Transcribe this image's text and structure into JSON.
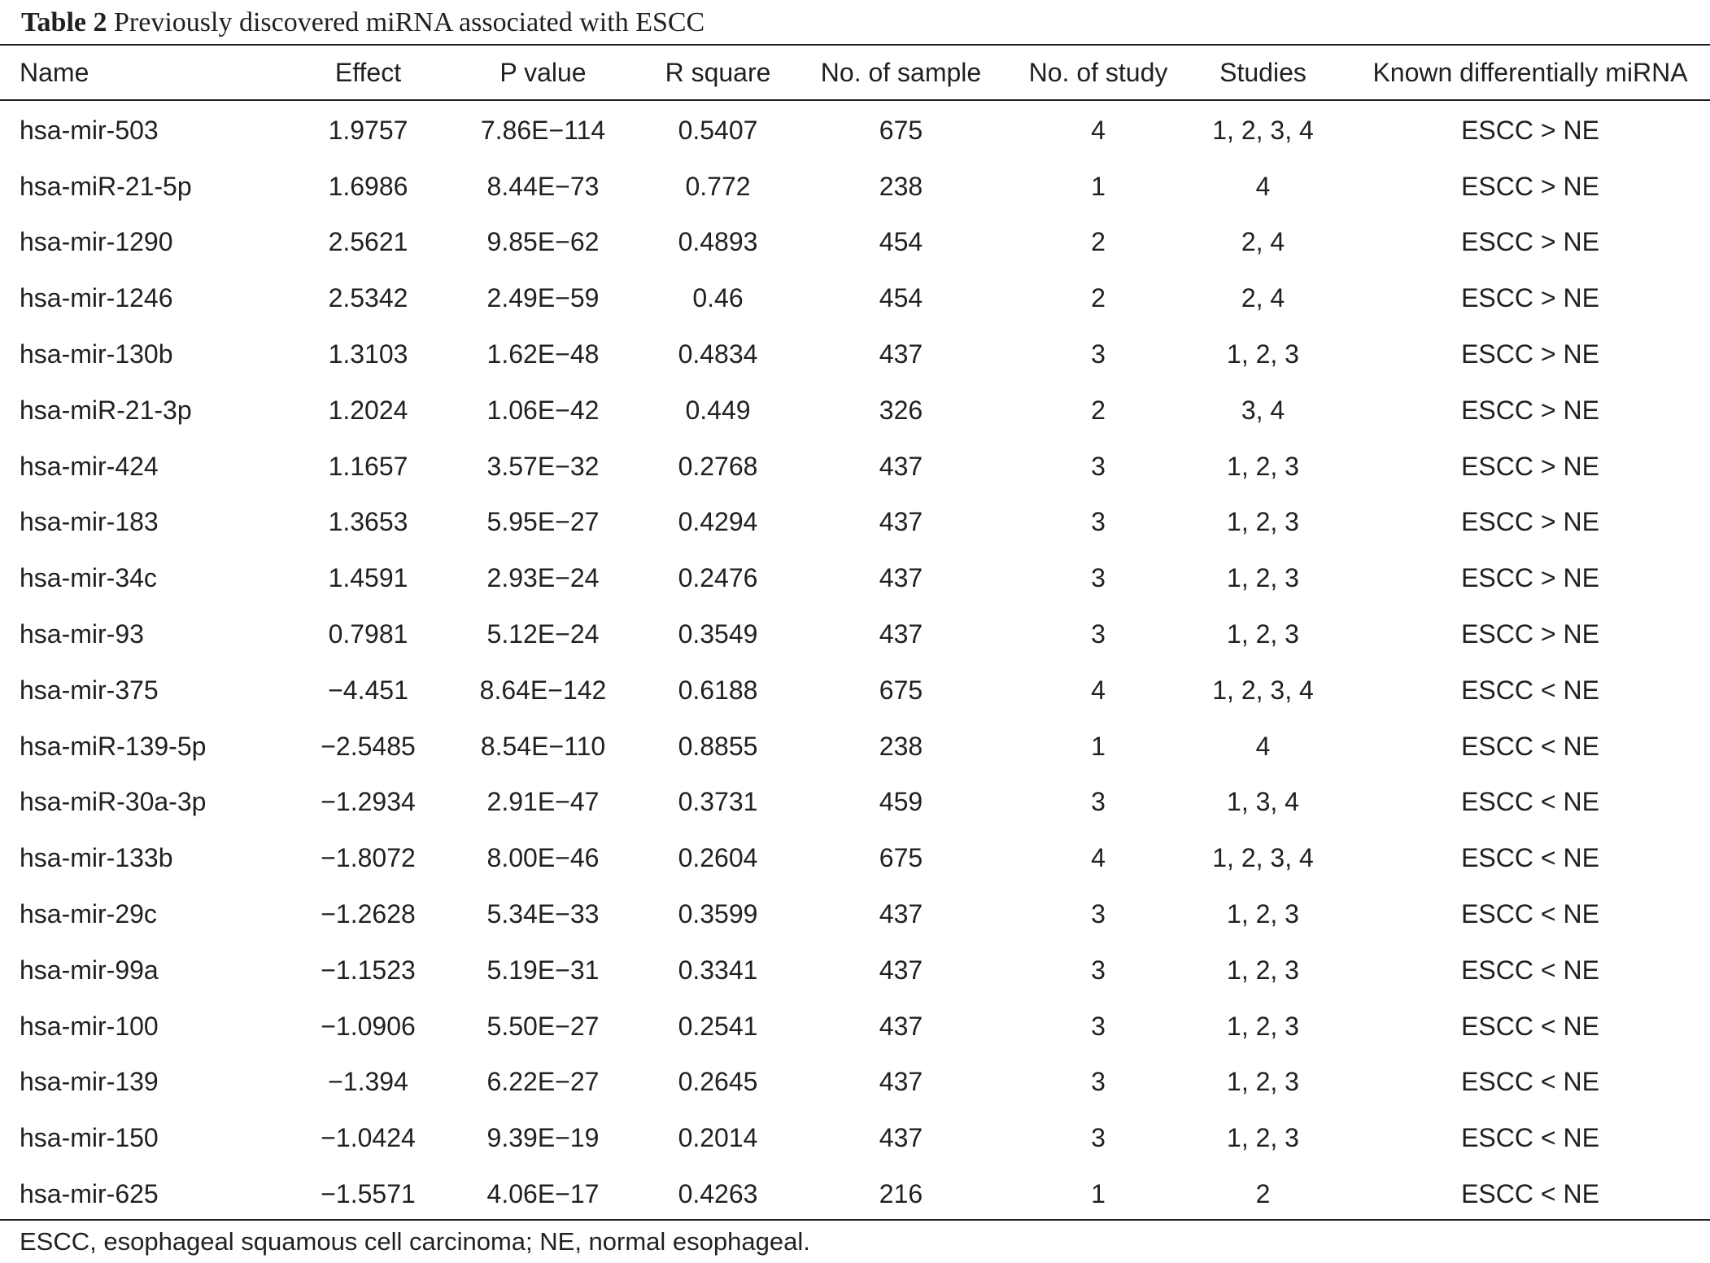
{
  "caption": {
    "label": "Table 2",
    "text": "Previously discovered miRNA associated with ESCC"
  },
  "table": {
    "headers": [
      "Name",
      "Effect",
      "P value",
      "R square",
      "No. of sample",
      "No. of study",
      "Studies",
      "Known differentially miRNA"
    ],
    "rows": [
      [
        "hsa-mir-503",
        "1.9757",
        "7.86E−114",
        "0.5407",
        "675",
        "4",
        "1, 2, 3, 4",
        "ESCC > NE"
      ],
      [
        "hsa-miR-21-5p",
        "1.6986",
        "8.44E−73",
        "0.772",
        "238",
        "1",
        "4",
        "ESCC > NE"
      ],
      [
        "hsa-mir-1290",
        "2.5621",
        "9.85E−62",
        "0.4893",
        "454",
        "2",
        "2, 4",
        "ESCC > NE"
      ],
      [
        "hsa-mir-1246",
        "2.5342",
        "2.49E−59",
        "0.46",
        "454",
        "2",
        "2, 4",
        "ESCC > NE"
      ],
      [
        "hsa-mir-130b",
        "1.3103",
        "1.62E−48",
        "0.4834",
        "437",
        "3",
        "1, 2, 3",
        "ESCC > NE"
      ],
      [
        "hsa-miR-21-3p",
        "1.2024",
        "1.06E−42",
        "0.449",
        "326",
        "2",
        "3, 4",
        "ESCC > NE"
      ],
      [
        "hsa-mir-424",
        "1.1657",
        "3.57E−32",
        "0.2768",
        "437",
        "3",
        "1, 2, 3",
        "ESCC > NE"
      ],
      [
        "hsa-mir-183",
        "1.3653",
        "5.95E−27",
        "0.4294",
        "437",
        "3",
        "1, 2, 3",
        "ESCC > NE"
      ],
      [
        "hsa-mir-34c",
        "1.4591",
        "2.93E−24",
        "0.2476",
        "437",
        "3",
        "1, 2, 3",
        "ESCC > NE"
      ],
      [
        "hsa-mir-93",
        "0.7981",
        "5.12E−24",
        "0.3549",
        "437",
        "3",
        "1, 2, 3",
        "ESCC > NE"
      ],
      [
        "hsa-mir-375",
        "−4.451",
        "8.64E−142",
        "0.6188",
        "675",
        "4",
        "1, 2, 3, 4",
        "ESCC < NE"
      ],
      [
        "hsa-miR-139-5p",
        "−2.5485",
        "8.54E−110",
        "0.8855",
        "238",
        "1",
        "4",
        "ESCC < NE"
      ],
      [
        "hsa-miR-30a-3p",
        "−1.2934",
        "2.91E−47",
        "0.3731",
        "459",
        "3",
        "1, 3, 4",
        "ESCC < NE"
      ],
      [
        "hsa-mir-133b",
        "−1.8072",
        "8.00E−46",
        "0.2604",
        "675",
        "4",
        "1, 2, 3, 4",
        "ESCC < NE"
      ],
      [
        "hsa-mir-29c",
        "−1.2628",
        "5.34E−33",
        "0.3599",
        "437",
        "3",
        "1, 2, 3",
        "ESCC < NE"
      ],
      [
        "hsa-mir-99a",
        "−1.1523",
        "5.19E−31",
        "0.3341",
        "437",
        "3",
        "1, 2, 3",
        "ESCC < NE"
      ],
      [
        "hsa-mir-100",
        "−1.0906",
        "5.50E−27",
        "0.2541",
        "437",
        "3",
        "1, 2, 3",
        "ESCC < NE"
      ],
      [
        "hsa-mir-139",
        "−1.394",
        "6.22E−27",
        "0.2645",
        "437",
        "3",
        "1, 2, 3",
        "ESCC < NE"
      ],
      [
        "hsa-mir-150",
        "−1.0424",
        "9.39E−19",
        "0.2014",
        "437",
        "3",
        "1, 2, 3",
        "ESCC < NE"
      ],
      [
        "hsa-mir-625",
        "−1.5571",
        "4.06E−17",
        "0.4263",
        "216",
        "1",
        "2",
        "ESCC < NE"
      ]
    ]
  },
  "footnote": "ESCC, esophageal squamous cell carcinoma; NE, normal esophageal."
}
